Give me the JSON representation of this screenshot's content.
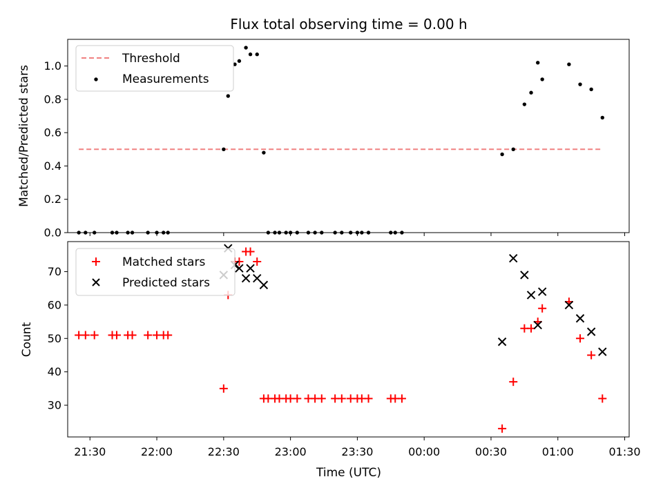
{
  "chart_data": {
    "type": "scatter",
    "title": "Flux total observing time = 0.00 h",
    "xlabel": "Time (UTC)",
    "xlim": [
      "21:20",
      "01:32"
    ],
    "xticks": [
      "21:30",
      "22:00",
      "22:30",
      "23:00",
      "23:30",
      "00:00",
      "00:30",
      "01:00",
      "01:30"
    ],
    "panels": [
      {
        "id": "ratio",
        "ylabel": "Matched/Predicted stars",
        "ylim": [
          0,
          1.16
        ],
        "yticks": [
          "0.0",
          "0.2",
          "0.4",
          "0.6",
          "0.8",
          "1.0"
        ],
        "legend": {
          "position": "upper left",
          "entries": [
            "Threshold",
            "Measurements"
          ]
        },
        "series": [
          {
            "name": "Threshold",
            "style": "dashed-line",
            "color": "#f08080",
            "points": [
              [
                "21:25",
                0.5
              ],
              [
                "01:20",
                0.5
              ]
            ]
          },
          {
            "name": "Measurements",
            "style": "dot",
            "color": "#000000",
            "points": [
              [
                "21:25",
                0.0
              ],
              [
                "21:28",
                0.0
              ],
              [
                "21:32",
                0.0
              ],
              [
                "21:40",
                0.0
              ],
              [
                "21:42",
                0.0
              ],
              [
                "21:47",
                0.0
              ],
              [
                "21:49",
                0.0
              ],
              [
                "21:56",
                0.0
              ],
              [
                "22:00",
                0.0
              ],
              [
                "22:03",
                0.0
              ],
              [
                "22:05",
                0.0
              ],
              [
                "22:30",
                0.5
              ],
              [
                "22:32",
                0.82
              ],
              [
                "22:35",
                1.01
              ],
              [
                "22:37",
                1.03
              ],
              [
                "22:40",
                1.11
              ],
              [
                "22:42",
                1.07
              ],
              [
                "22:45",
                1.07
              ],
              [
                "22:48",
                0.48
              ],
              [
                "22:50",
                0.0
              ],
              [
                "22:53",
                0.0
              ],
              [
                "22:55",
                0.0
              ],
              [
                "22:58",
                0.0
              ],
              [
                "23:00",
                0.0
              ],
              [
                "23:03",
                0.0
              ],
              [
                "23:08",
                0.0
              ],
              [
                "23:11",
                0.0
              ],
              [
                "23:14",
                0.0
              ],
              [
                "23:20",
                0.0
              ],
              [
                "23:23",
                0.0
              ],
              [
                "23:27",
                0.0
              ],
              [
                "23:30",
                0.0
              ],
              [
                "23:32",
                0.0
              ],
              [
                "23:35",
                0.0
              ],
              [
                "23:45",
                0.0
              ],
              [
                "23:47",
                0.0
              ],
              [
                "23:50",
                0.0
              ],
              [
                "00:35",
                0.47
              ],
              [
                "00:40",
                0.5
              ],
              [
                "00:45",
                0.77
              ],
              [
                "00:48",
                0.84
              ],
              [
                "00:51",
                1.02
              ],
              [
                "00:53",
                0.92
              ],
              [
                "01:05",
                1.01
              ],
              [
                "01:10",
                0.89
              ],
              [
                "01:15",
                0.86
              ],
              [
                "01:20",
                0.69
              ]
            ]
          }
        ]
      },
      {
        "id": "count",
        "ylabel": "Count",
        "ylim": [
          20.5,
          79
        ],
        "yticks": [
          "30",
          "40",
          "50",
          "60",
          "70"
        ],
        "legend": {
          "position": "upper left",
          "entries": [
            "Matched stars",
            "Predicted stars"
          ]
        },
        "series": [
          {
            "name": "Matched stars",
            "style": "plus",
            "color": "#ff0000",
            "points": [
              [
                "21:25",
                51
              ],
              [
                "21:28",
                51
              ],
              [
                "21:32",
                51
              ],
              [
                "21:40",
                51
              ],
              [
                "21:42",
                51
              ],
              [
                "21:47",
                51
              ],
              [
                "21:49",
                51
              ],
              [
                "21:56",
                51
              ],
              [
                "22:00",
                51
              ],
              [
                "22:03",
                51
              ],
              [
                "22:05",
                51
              ],
              [
                "22:30",
                35
              ],
              [
                "22:32",
                63
              ],
              [
                "22:35",
                73
              ],
              [
                "22:37",
                73
              ],
              [
                "22:40",
                76
              ],
              [
                "22:42",
                76
              ],
              [
                "22:45",
                73
              ],
              [
                "22:48",
                32
              ],
              [
                "22:50",
                32
              ],
              [
                "22:53",
                32
              ],
              [
                "22:55",
                32
              ],
              [
                "22:58",
                32
              ],
              [
                "23:00",
                32
              ],
              [
                "23:03",
                32
              ],
              [
                "23:08",
                32
              ],
              [
                "23:11",
                32
              ],
              [
                "23:14",
                32
              ],
              [
                "23:20",
                32
              ],
              [
                "23:23",
                32
              ],
              [
                "23:27",
                32
              ],
              [
                "23:30",
                32
              ],
              [
                "23:32",
                32
              ],
              [
                "23:35",
                32
              ],
              [
                "23:45",
                32
              ],
              [
                "23:47",
                32
              ],
              [
                "23:50",
                32
              ],
              [
                "00:35",
                23
              ],
              [
                "00:40",
                37
              ],
              [
                "00:45",
                53
              ],
              [
                "00:48",
                53
              ],
              [
                "00:51",
                55
              ],
              [
                "00:53",
                59
              ],
              [
                "01:05",
                61
              ],
              [
                "01:10",
                50
              ],
              [
                "01:15",
                45
              ],
              [
                "01:20",
                32
              ]
            ]
          },
          {
            "name": "Predicted stars",
            "style": "x",
            "color": "#000000",
            "points": [
              [
                "22:30",
                69
              ],
              [
                "22:32",
                77
              ],
              [
                "22:35",
                72
              ],
              [
                "22:37",
                71
              ],
              [
                "22:40",
                68
              ],
              [
                "22:42",
                71
              ],
              [
                "22:45",
                68
              ],
              [
                "22:48",
                66
              ],
              [
                "00:35",
                49
              ],
              [
                "00:40",
                74
              ],
              [
                "00:45",
                69
              ],
              [
                "00:48",
                63
              ],
              [
                "00:51",
                54
              ],
              [
                "00:53",
                64
              ],
              [
                "01:05",
                60
              ],
              [
                "01:10",
                56
              ],
              [
                "01:15",
                52
              ],
              [
                "01:20",
                46
              ]
            ]
          }
        ]
      }
    ]
  }
}
